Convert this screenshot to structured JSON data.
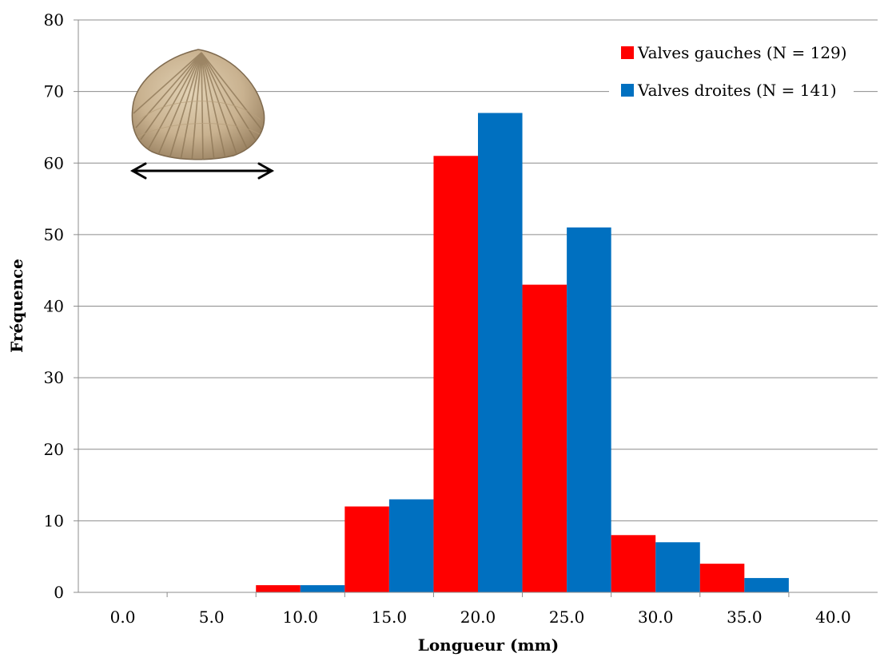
{
  "chart_data": {
    "type": "bar",
    "xlabel": "Longueur (mm)",
    "ylabel": "Fréquence",
    "x_tick_labels": [
      "0.0",
      "5.0",
      "10.0",
      "15.0",
      "20.0",
      "25.0",
      "30.0",
      "35.0",
      "40.0"
    ],
    "ylim": [
      0,
      80
    ],
    "y_ticks": [
      0,
      10,
      20,
      30,
      40,
      50,
      60,
      70,
      80
    ],
    "bin_width": 5,
    "bin_centers": [
      10,
      15,
      20,
      25,
      30,
      35
    ],
    "series": [
      {
        "name": "Valves gauches (N = 129)",
        "color": "#ff0000",
        "values": [
          1,
          12,
          61,
          43,
          8,
          4
        ]
      },
      {
        "name": "Valves droites (N = 141)",
        "color": "#0070c0",
        "values": [
          1,
          13,
          67,
          51,
          7,
          2
        ]
      }
    ],
    "grid": "horizontal",
    "legend_position": "top-right"
  },
  "annotation": {
    "image_icon": "cockle-shell-image",
    "arrow_icon": "double-arrow-icon"
  }
}
